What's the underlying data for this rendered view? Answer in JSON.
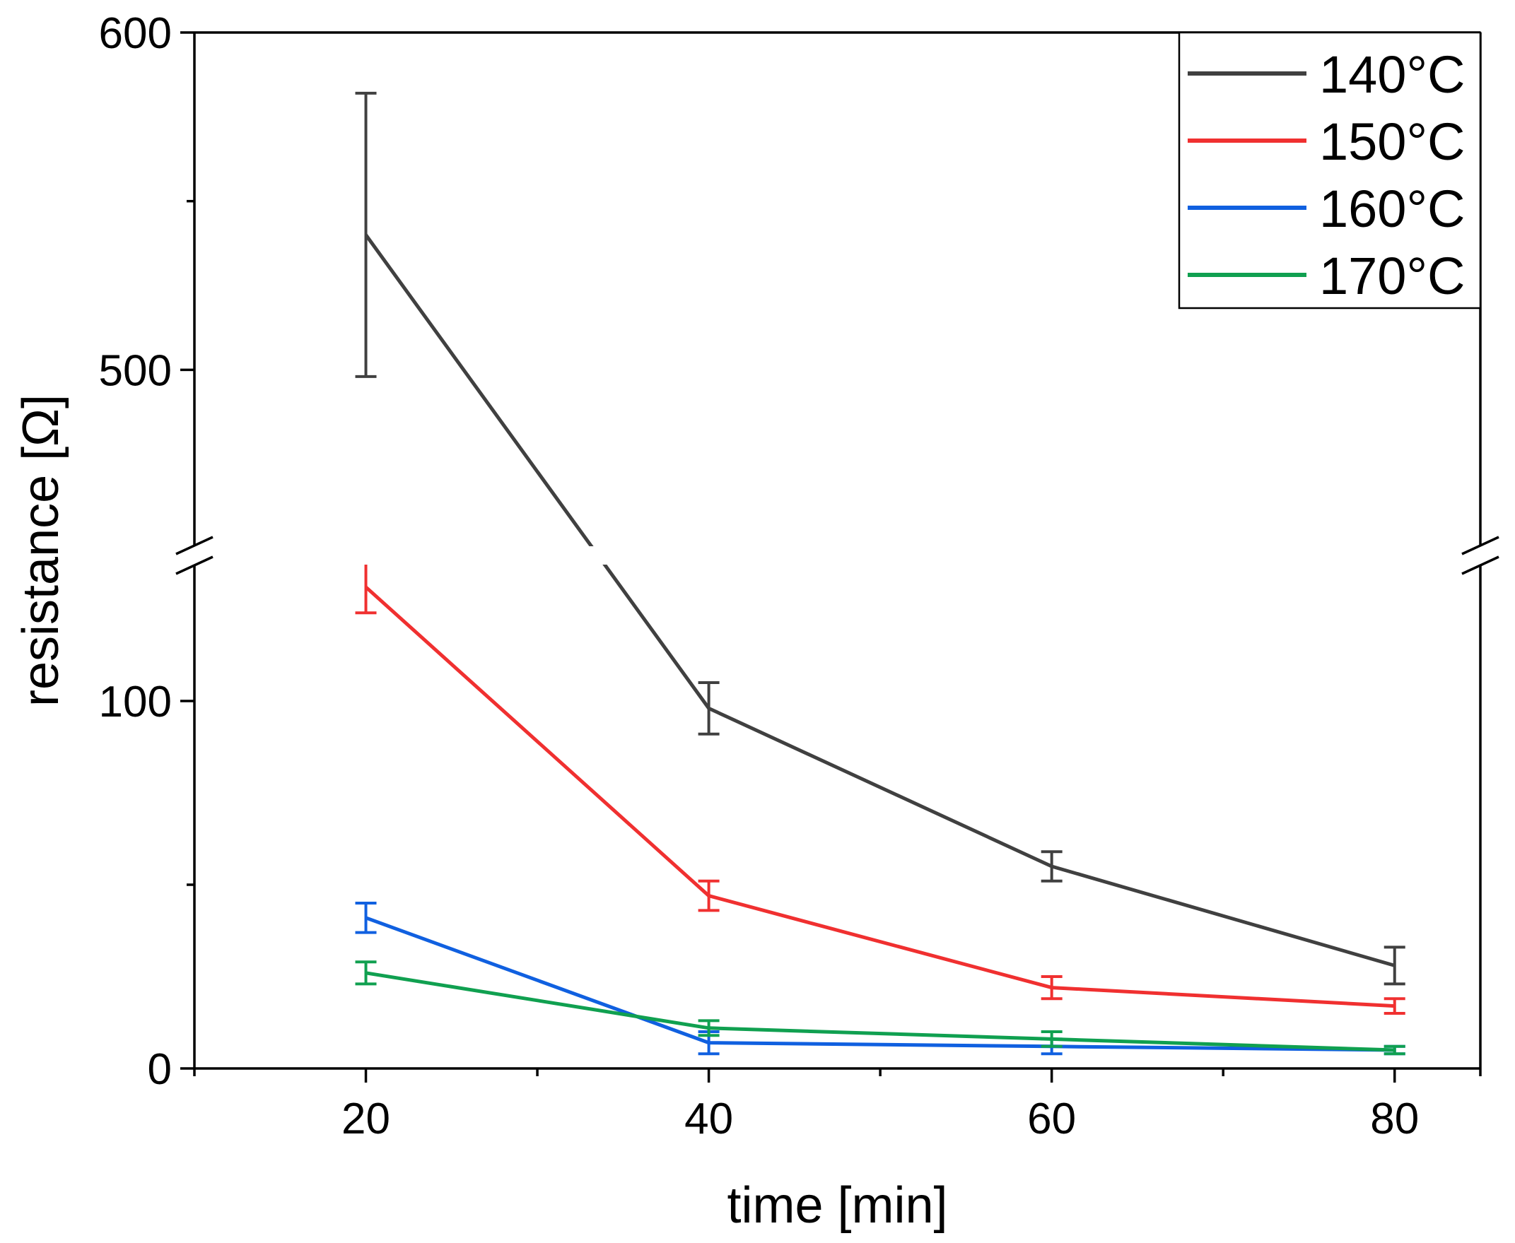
{
  "chart_data": {
    "type": "line",
    "xlabel": "time [min]",
    "ylabel": "resistance [Ω]",
    "x_ticks": [
      20,
      40,
      60,
      80
    ],
    "xlim": [
      10,
      85
    ],
    "y_axis_break": {
      "lower_range": [
        0,
        135
      ],
      "upper_range": [
        450,
        600
      ],
      "lower_ticks": [
        0,
        100
      ],
      "upper_ticks": [
        500,
        600
      ]
    },
    "legend_position": "top-right",
    "series": [
      {
        "name": "140°C",
        "color": "#404040",
        "x": [
          20,
          40,
          60,
          80
        ],
        "y": [
          540,
          98,
          55,
          28
        ],
        "error": [
          42,
          7,
          4,
          5
        ]
      },
      {
        "name": "150°C",
        "color": "#f03030",
        "x": [
          20,
          40,
          60,
          80
        ],
        "y": [
          131,
          47,
          22,
          17
        ],
        "error": [
          7,
          4,
          3,
          2
        ]
      },
      {
        "name": "160°C",
        "color": "#1060e0",
        "x": [
          20,
          40,
          60,
          80
        ],
        "y": [
          41,
          7,
          6,
          5
        ],
        "error": [
          4,
          3,
          2,
          1
        ]
      },
      {
        "name": "170°C",
        "color": "#10a050",
        "x": [
          20,
          40,
          60,
          80
        ],
        "y": [
          26,
          11,
          8,
          5
        ],
        "error": [
          3,
          2,
          2,
          1
        ]
      }
    ]
  }
}
